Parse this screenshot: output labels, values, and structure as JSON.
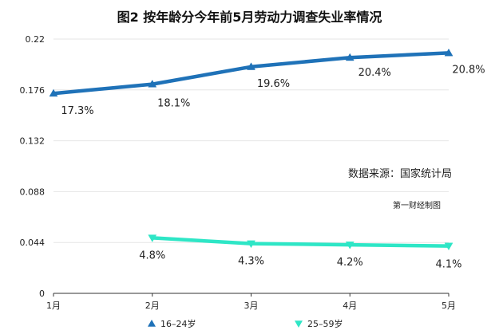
{
  "chart_data": {
    "type": "line",
    "title": "图2 按年龄分今年前5月劳动力调查失业率情况",
    "categories": [
      "1月",
      "2月",
      "3月",
      "4月",
      "5月"
    ],
    "ylim": [
      0,
      0.22
    ],
    "yticks": [
      "0",
      "0.044",
      "0.088",
      "0.132",
      "0.176",
      "0.22"
    ],
    "grid": true,
    "legend_position": "bottom",
    "series": [
      {
        "name": "16–24岁",
        "color": "#1f72b8",
        "marker": "triangle-up",
        "values": [
          0.173,
          0.181,
          0.196,
          0.204,
          0.208
        ],
        "labels": [
          "17.3%",
          "18.1%",
          "19.6%",
          "20.4%",
          "20.8%"
        ]
      },
      {
        "name": "25–59岁",
        "color": "#2ee6c6",
        "marker": "triangle-down",
        "values": [
          null,
          0.048,
          0.043,
          0.042,
          0.041
        ],
        "labels": [
          "",
          "4.8%",
          "4.3%",
          "4.2%",
          "4.1%"
        ]
      }
    ]
  },
  "annotations": {
    "source": "数据来源：国家统计局",
    "credit": "第一财经制图"
  }
}
